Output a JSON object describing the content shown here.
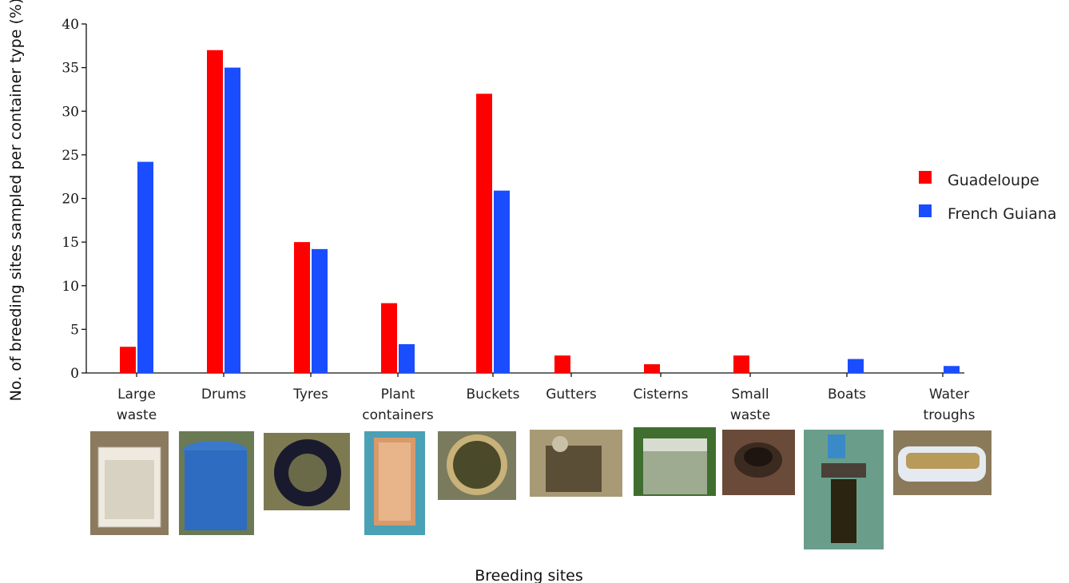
{
  "chart_data": {
    "type": "bar",
    "ylabel": "No. of breeding sites sampled per container type (%)",
    "xlabel": "Breeding sites",
    "ylim": [
      0,
      40
    ],
    "yticks": [
      "0",
      "5",
      "10",
      "15",
      "20",
      "25",
      "30",
      "35",
      "40"
    ],
    "categories": [
      [
        "Large",
        "waste"
      ],
      [
        "Drums"
      ],
      [
        "Tyres"
      ],
      [
        "Plant",
        "containers"
      ],
      [
        "Buckets"
      ],
      [
        "Gutters"
      ],
      [
        "Cisterns"
      ],
      [
        "Small",
        "waste"
      ],
      [
        "Boats"
      ],
      [
        "Water",
        "troughs"
      ]
    ],
    "series": [
      {
        "name": "Guadeloupe",
        "color": "#ff0000",
        "values": [
          3,
          37,
          15,
          8,
          32,
          2,
          1,
          2,
          0,
          0
        ]
      },
      {
        "name": "French Guiana",
        "color": "#1a4dff",
        "values": [
          24.2,
          35,
          14.2,
          3.3,
          20.9,
          0,
          0,
          0,
          1.6,
          0.8
        ]
      }
    ],
    "legend_position": "right",
    "grid": false
  }
}
